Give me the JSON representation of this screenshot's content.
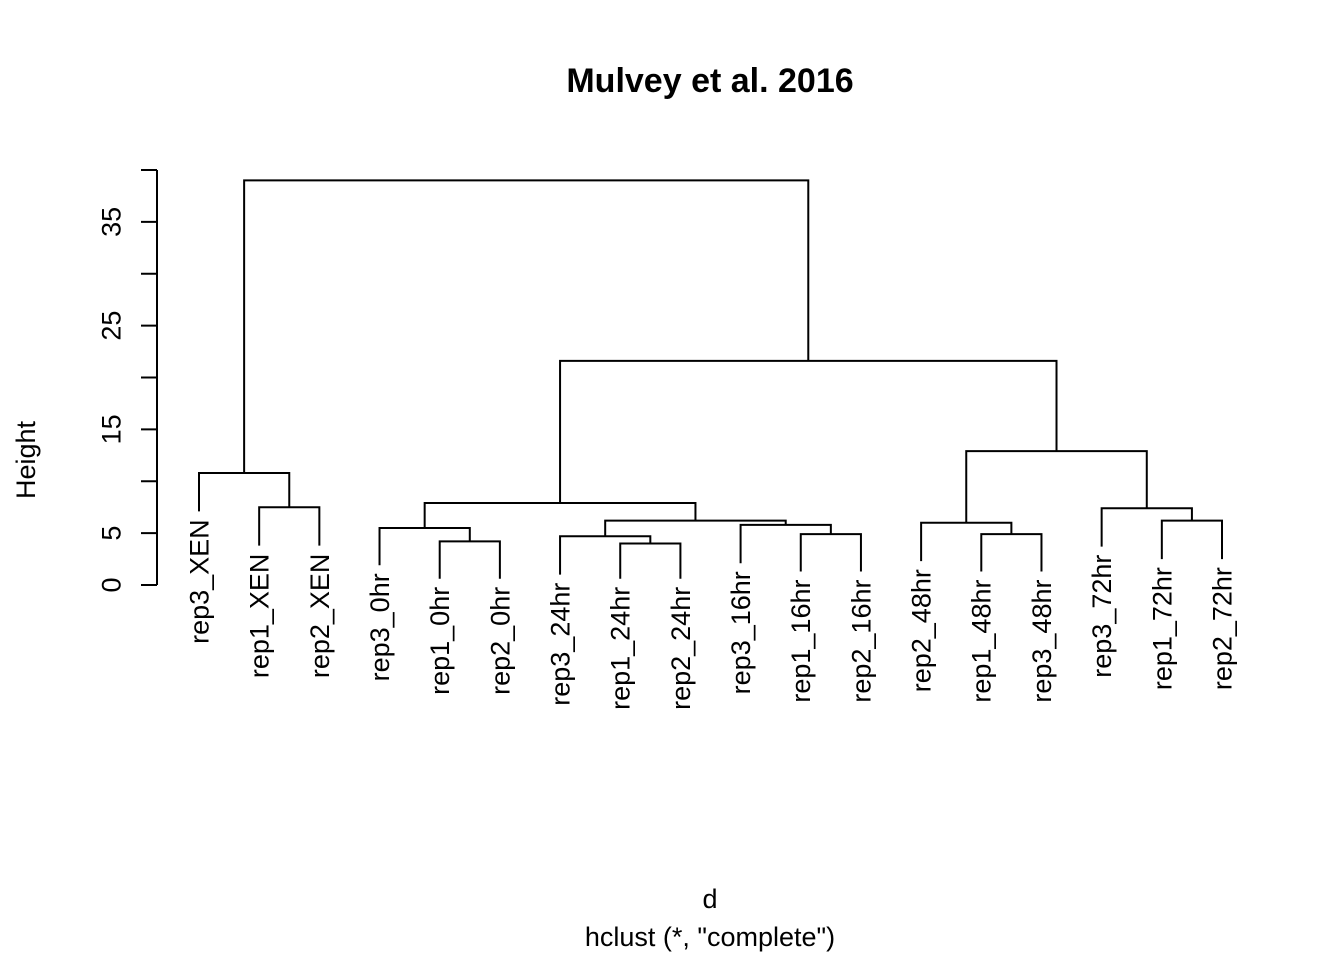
{
  "chart_data": {
    "type": "dendrogram",
    "title": "Mulvey et al. 2016",
    "xlabel": "d",
    "sub": "hclust (*, \"complete\")",
    "ylabel": "Height",
    "ylim": [
      0,
      40
    ],
    "y_ticks": [
      0,
      5,
      10,
      15,
      20,
      25,
      30,
      35,
      40
    ],
    "y_tick_labels": [
      "0",
      "5",
      "",
      "15",
      "",
      "25",
      "",
      "35",
      ""
    ],
    "leaves": [
      "rep3_XEN",
      "rep1_XEN",
      "rep2_XEN",
      "rep3_0hr",
      "rep1_0hr",
      "rep2_0hr",
      "rep3_24hr",
      "rep1_24hr",
      "rep2_24hr",
      "rep3_16hr",
      "rep1_16hr",
      "rep2_16hr",
      "rep2_48hr",
      "rep1_48hr",
      "rep3_48hr",
      "rep3_72hr",
      "rep1_72hr",
      "rep2_72hr"
    ],
    "merges": [
      {
        "left": 2,
        "right": 3,
        "height": 7.5
      },
      {
        "left": 1,
        "right": "m1",
        "height": 10.8
      },
      {
        "left": 5,
        "right": 6,
        "height": 4.2
      },
      {
        "left": 4,
        "right": "m3",
        "height": 5.5
      },
      {
        "left": 8,
        "right": 9,
        "height": 4.0
      },
      {
        "left": 7,
        "right": "m5",
        "height": 4.7
      },
      {
        "left": 11,
        "right": 12,
        "height": 4.9
      },
      {
        "left": 10,
        "right": "m7",
        "height": 5.8
      },
      {
        "left": "m6",
        "right": "m8",
        "height": 6.2
      },
      {
        "left": "m4",
        "right": "m9",
        "height": 7.9
      },
      {
        "left": 14,
        "right": 15,
        "height": 4.9
      },
      {
        "left": 13,
        "right": "m11",
        "height": 6.0
      },
      {
        "left": 17,
        "right": 18,
        "height": 6.2
      },
      {
        "left": 16,
        "right": "m13",
        "height": 7.4
      },
      {
        "left": "m12",
        "right": "m14",
        "height": 12.9
      },
      {
        "left": "m10",
        "right": "m15",
        "height": 21.6
      },
      {
        "left": "m2",
        "right": "m16",
        "height": 39.0
      }
    ],
    "leaf_heights": [
      7.1,
      3.8,
      3.8,
      1.9,
      0.6,
      0.6,
      1.0,
      0.6,
      0.6,
      2.1,
      1.3,
      1.3,
      2.3,
      1.3,
      1.3,
      3.7,
      2.5,
      2.5
    ]
  }
}
